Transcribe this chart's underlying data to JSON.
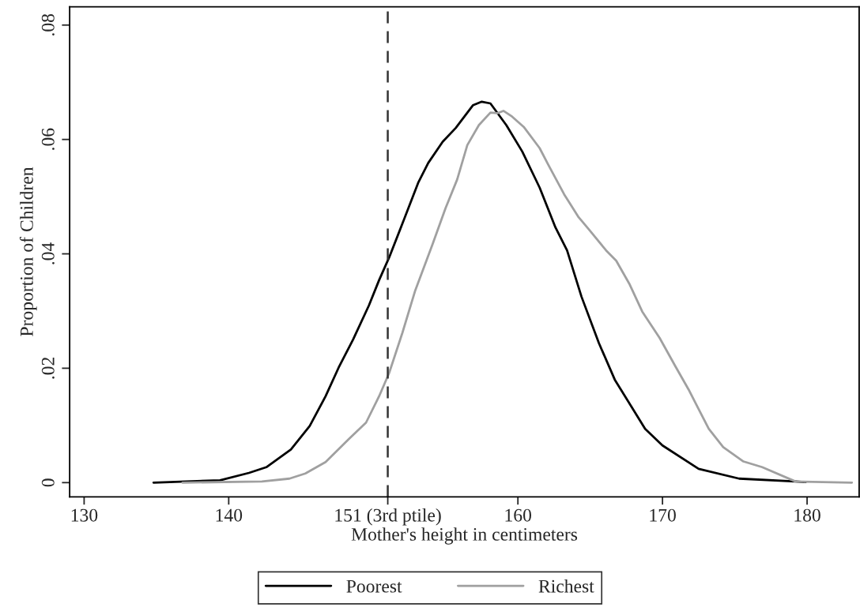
{
  "chart_data": {
    "type": "line",
    "xlabel": "Mother's height in centimeters",
    "ylabel": "Proportion of Children",
    "xlim": [
      129,
      183.6
    ],
    "ylim": [
      -0.0025,
      0.0832
    ],
    "xticks": [
      130,
      140,
      {
        "value": 151,
        "label": "151 (3rd ptile)"
      },
      160,
      170,
      180
    ],
    "yticks": [
      0,
      {
        "value": 0.02,
        "label": ".02"
      },
      {
        "value": 0.04,
        "label": ".04"
      },
      {
        "value": 0.06,
        "label": ".06"
      },
      {
        "value": 0.08,
        "label": ".08"
      }
    ],
    "grid": false,
    "legend": "bottom",
    "marker": "none",
    "line_style": "solid",
    "ref_lines": [
      {
        "axis": "x",
        "value": 151,
        "color": "#333333",
        "line_style": "dashed"
      }
    ],
    "series": [
      {
        "name": "Poorest",
        "color": "#000000",
        "x": [
          134.8,
          139.4,
          141.4,
          142.6,
          144.3,
          145.6,
          146.7,
          147.6,
          148.6,
          149.7,
          150.4,
          151.1,
          152.0,
          153.1,
          153.8,
          154.8,
          155.7,
          156.9,
          157.5,
          158.1,
          159.2,
          160.3,
          161.5,
          162.6,
          163.4,
          164.4,
          165.6,
          166.7,
          168.8,
          170.0,
          172.5,
          175.3,
          179.2,
          179.9
        ],
        "values": [
          0,
          0.0004,
          0.0017,
          0.0027,
          0.0058,
          0.0099,
          0.0151,
          0.0201,
          0.025,
          0.031,
          0.0354,
          0.0394,
          0.0452,
          0.0524,
          0.0559,
          0.0596,
          0.062,
          0.066,
          0.0666,
          0.0663,
          0.0625,
          0.0579,
          0.0516,
          0.0446,
          0.0406,
          0.0325,
          0.0244,
          0.018,
          0.0094,
          0.0065,
          0.0024,
          0.0007,
          0.0002,
          0.0001
        ]
      },
      {
        "name": "Richest",
        "color": "#a0a0a0",
        "x": [
          136.8,
          142.3,
          144.2,
          145.3,
          146.7,
          148.3,
          149.5,
          150.4,
          151.1,
          152.0,
          152.9,
          154.1,
          155.0,
          155.8,
          156.5,
          157.3,
          158.1,
          158.6,
          159.0,
          159.6,
          160.4,
          161.5,
          162.1,
          163.2,
          164.2,
          164.9,
          166.1,
          166.8,
          167.7,
          168.6,
          169.8,
          170.9,
          171.8,
          173.2,
          174.2,
          175.6,
          176.9,
          179.2,
          183.1
        ],
        "values": [
          0,
          0.0002,
          0.0007,
          0.0016,
          0.0036,
          0.0076,
          0.0105,
          0.0151,
          0.0192,
          0.0261,
          0.0336,
          0.0417,
          0.048,
          0.053,
          0.059,
          0.0625,
          0.0647,
          0.0646,
          0.065,
          0.064,
          0.0622,
          0.0585,
          0.0556,
          0.0504,
          0.0464,
          0.0443,
          0.0406,
          0.0388,
          0.0348,
          0.0299,
          0.0253,
          0.0203,
          0.0163,
          0.0094,
          0.0062,
          0.0037,
          0.0027,
          0.0002,
          0
        ]
      }
    ]
  }
}
